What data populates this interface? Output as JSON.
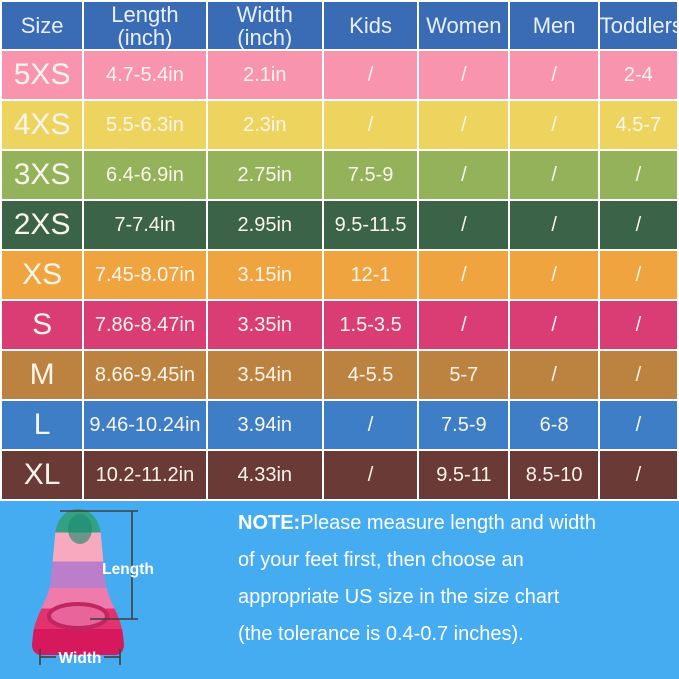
{
  "chart_data": {
    "type": "table",
    "title": "",
    "columns": [
      "Size",
      "Length (inch)",
      "Width (inch)",
      "Kids",
      "Women",
      "Men",
      "Toddlers"
    ],
    "rows": [
      [
        "5XS",
        "4.7-5.4in",
        "2.1in",
        "/",
        "/",
        "/",
        "2-4"
      ],
      [
        "4XS",
        "5.5-6.3in",
        "2.3in",
        "/",
        "/",
        "/",
        "4.5-7"
      ],
      [
        "3XS",
        "6.4-6.9in",
        "2.75in",
        "7.5-9",
        "/",
        "/",
        "/"
      ],
      [
        "2XS",
        "7-7.4in",
        "2.95in",
        "9.5-11.5",
        "/",
        "/",
        "/"
      ],
      [
        "XS",
        "7.45-8.07in",
        "3.15in",
        "12-1",
        "/",
        "/",
        "/"
      ],
      [
        "S",
        "7.86-8.47in",
        "3.35in",
        "1.5-3.5",
        "/",
        "/",
        "/"
      ],
      [
        "M",
        "8.66-9.45in",
        "3.54in",
        "4-5.5",
        "5-7",
        "/",
        "/"
      ],
      [
        "L",
        "9.46-10.24in",
        "3.94in",
        "/",
        "7.5-9",
        "6-8",
        "/"
      ],
      [
        "XL",
        "10.2-11.2in",
        "4.33in",
        "/",
        "9.5-11",
        "8.5-10",
        "/"
      ]
    ],
    "legend": "none",
    "grid": "white 2px cell gaps"
  },
  "table": {
    "header_bg": "#3a6cb5",
    "text_color": "#faf5ec",
    "columns": [
      {
        "key": "size",
        "line1": "Size",
        "line2": ""
      },
      {
        "key": "length",
        "line1": "Length",
        "line2": "(inch)"
      },
      {
        "key": "width",
        "line1": "Width",
        "line2": "(inch)"
      },
      {
        "key": "kids",
        "line1": "Kids",
        "line2": ""
      },
      {
        "key": "women",
        "line1": "Women",
        "line2": ""
      },
      {
        "key": "men",
        "line1": "Men",
        "line2": ""
      },
      {
        "key": "toddlers",
        "line1": "Toddlers",
        "line2": ""
      }
    ],
    "row_colors": [
      "#f994af",
      "#edd45f",
      "#93b259",
      "#3b6347",
      "#efa440",
      "#da3d74",
      "#bc8340",
      "#3d7ec7",
      "#6a3a36"
    ]
  },
  "note": {
    "bg": "#45acf2",
    "label": "NOTE:",
    "lines": [
      "Please measure length and width",
      "of your feet first, then choose an",
      "appropriate US size in the size chart",
      "(the tolerance is 0.4-0.7 inches)."
    ]
  },
  "fin_diagram": {
    "length_label": "Length",
    "width_label": "Width",
    "band_colors": [
      "#35a183",
      "#f8a9bf",
      "#bd7ec9",
      "#ee7bac",
      "#e3326e",
      "#d6195c"
    ],
    "dimension_line_color": "#3f3f3f"
  }
}
